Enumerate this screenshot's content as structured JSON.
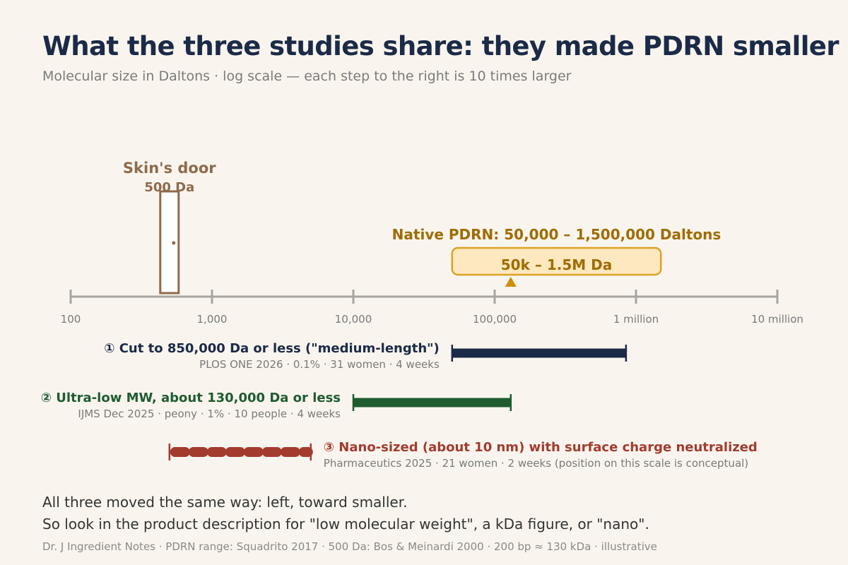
{
  "title": "What the three studies share: they made PDRN smaller",
  "subtitle": "Molecular size in Daltons · log scale — each step to the right is 10 times larger",
  "colors": {
    "axis": "#a8a5a0",
    "tick_text": "#7a7a7a",
    "door": "#8e6a4c",
    "native": "#a06c00",
    "native_fill": "#fde8bf",
    "native_stroke": "#dba226",
    "native_marker": "#d08e00",
    "study1": "#1b2a47",
    "study2": "#1f5c30",
    "study3": "#a33b2f",
    "note": "#7a7a7a"
  },
  "chart_data": {
    "type": "range",
    "x_scale": "log",
    "xlim": [
      100,
      10000000
    ],
    "x_ticks": [
      {
        "value": 100,
        "label": "100"
      },
      {
        "value": 1000,
        "label": "1,000"
      },
      {
        "value": 10000,
        "label": "10,000"
      },
      {
        "value": 100000,
        "label": "100,000"
      },
      {
        "value": 1000000,
        "label": "1 million"
      },
      {
        "value": 10000000,
        "label": "10 million"
      }
    ],
    "reference": {
      "value": 500,
      "label_line1": "Skin's door",
      "label_line2": "500 Da"
    },
    "native_range": {
      "low": 50000,
      "high": 1500000,
      "marker": 130000,
      "heading": "Native PDRN: 50,000 – 1,500,000 Daltons",
      "box_label": "50k – 1.5M Da"
    },
    "studies": [
      {
        "label": "① Cut to 850,000 Da or less (\"medium-length\")",
        "details": "PLOS ONE 2026 · 0.1% · 31 women · 4 weeks",
        "low": 50000,
        "high": 850000,
        "style": "solid",
        "color_key": "study1"
      },
      {
        "label": "② Ultra-low MW, about 130,000 Da or less",
        "details": "IJMS Dec 2025 · peony · 1% · 10 people · 4 weeks",
        "low": 10000,
        "high": 130000,
        "style": "solid",
        "color_key": "study2"
      },
      {
        "label": "③ Nano-sized (about 10 nm) with surface charge neutralized",
        "details": "Pharmaceutics 2025 · 21 women · 2 weeks  (position on this scale is conceptual)",
        "low": 500,
        "high": 5000,
        "style": "dashed",
        "color_key": "study3"
      }
    ]
  },
  "footer": {
    "line1": "All three moved the same way: left, toward smaller.",
    "line2": "So look in the product description for \"low molecular weight\", a kDa figure, or \"nano\".",
    "source": "Dr. J Ingredient Notes  ·  PDRN range: Squadrito 2017 · 500 Da: Bos & Meinardi 2000 · 200 bp ≈ 130 kDa  ·  illustrative"
  }
}
